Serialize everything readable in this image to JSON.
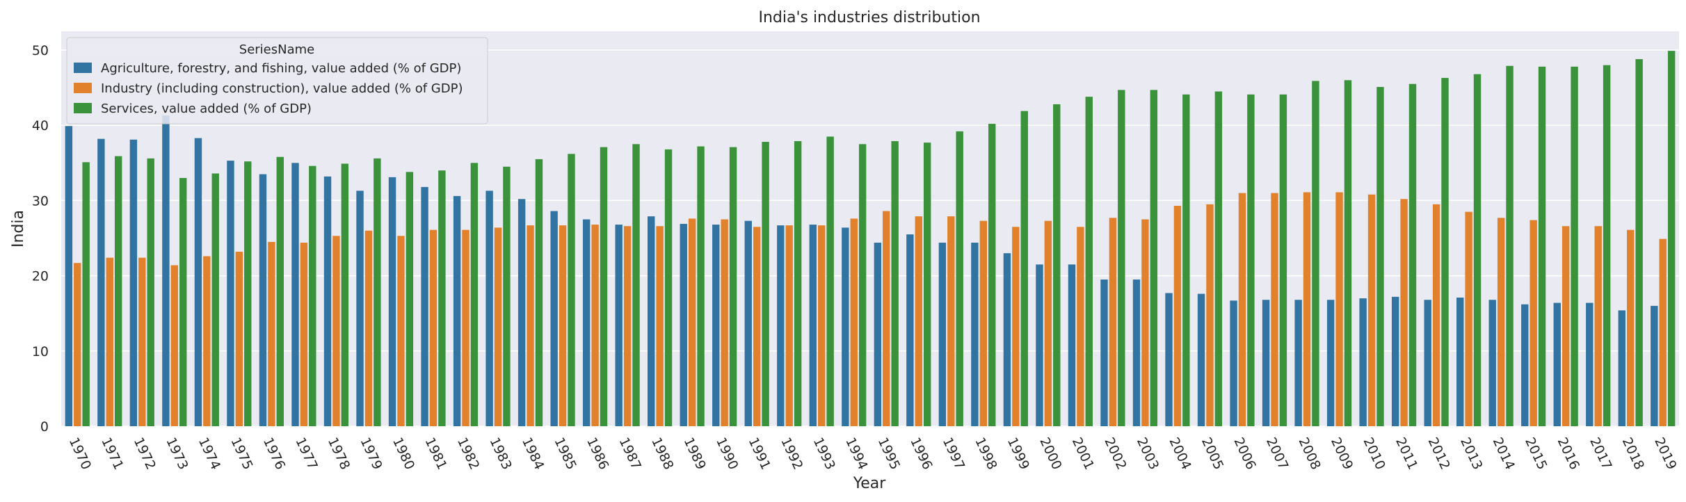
{
  "chart_data": {
    "type": "bar",
    "title": "India's industries distribution",
    "xlabel": "Year",
    "ylabel": "India",
    "ylim": [
      0,
      52.5
    ],
    "yticks": [
      0,
      10,
      20,
      30,
      40,
      50
    ],
    "grid": true,
    "legend_title": "SeriesName",
    "legend_position": "top-left",
    "categories": [
      "1970",
      "1971",
      "1972",
      "1973",
      "1974",
      "1975",
      "1976",
      "1977",
      "1978",
      "1979",
      "1980",
      "1981",
      "1982",
      "1983",
      "1984",
      "1985",
      "1986",
      "1987",
      "1988",
      "1989",
      "1990",
      "1991",
      "1992",
      "1993",
      "1994",
      "1995",
      "1996",
      "1997",
      "1998",
      "1999",
      "2000",
      "2001",
      "2002",
      "2003",
      "2004",
      "2005",
      "2006",
      "2007",
      "2008",
      "2009",
      "2010",
      "2011",
      "2012",
      "2013",
      "2014",
      "2015",
      "2016",
      "2017",
      "2018",
      "2019"
    ],
    "series": [
      {
        "name": "Agriculture, forestry, and fishing, value added (% of GDP)",
        "color": "#3274a1",
        "values": [
          39.9,
          38.2,
          38.1,
          41.3,
          38.3,
          35.3,
          33.5,
          35.0,
          33.2,
          31.3,
          33.1,
          31.8,
          30.6,
          31.3,
          30.2,
          28.6,
          27.5,
          26.8,
          27.9,
          26.9,
          26.8,
          27.3,
          26.7,
          26.8,
          26.4,
          24.4,
          25.5,
          24.4,
          24.4,
          23.0,
          21.5,
          21.5,
          19.5,
          19.5,
          17.7,
          17.6,
          16.7,
          16.8,
          16.8,
          16.8,
          17.0,
          17.2,
          16.8,
          17.1,
          16.8,
          16.2,
          16.4,
          16.4,
          15.4,
          16.0
        ]
      },
      {
        "name": "Industry (including construction), value added (% of GDP)",
        "color": "#e1812c",
        "values": [
          21.7,
          22.4,
          22.4,
          21.4,
          22.6,
          23.2,
          24.5,
          24.4,
          25.3,
          26.0,
          25.3,
          26.1,
          26.1,
          26.4,
          26.7,
          26.7,
          26.8,
          26.6,
          26.6,
          27.6,
          27.5,
          26.5,
          26.7,
          26.7,
          27.6,
          28.6,
          27.9,
          27.9,
          27.3,
          26.5,
          27.3,
          26.5,
          27.7,
          27.5,
          29.3,
          29.5,
          31.0,
          31.0,
          31.1,
          31.1,
          30.8,
          30.2,
          29.5,
          28.5,
          27.7,
          27.4,
          26.6,
          26.6,
          26.1,
          24.9
        ]
      },
      {
        "name": "Services, value added (% of GDP)",
        "color": "#3a923a",
        "values": [
          35.1,
          35.9,
          35.6,
          33.0,
          33.6,
          35.2,
          35.8,
          34.6,
          34.9,
          35.6,
          33.8,
          34.0,
          35.0,
          34.5,
          35.5,
          36.2,
          37.1,
          37.5,
          36.8,
          37.2,
          37.1,
          37.8,
          37.9,
          38.5,
          37.5,
          37.9,
          37.7,
          39.2,
          40.2,
          41.9,
          42.8,
          43.8,
          44.7,
          44.7,
          44.1,
          44.5,
          44.1,
          44.1,
          45.9,
          46.0,
          45.1,
          45.5,
          46.3,
          46.8,
          47.9,
          47.8,
          47.8,
          48.0,
          48.8,
          49.9
        ]
      }
    ]
  }
}
